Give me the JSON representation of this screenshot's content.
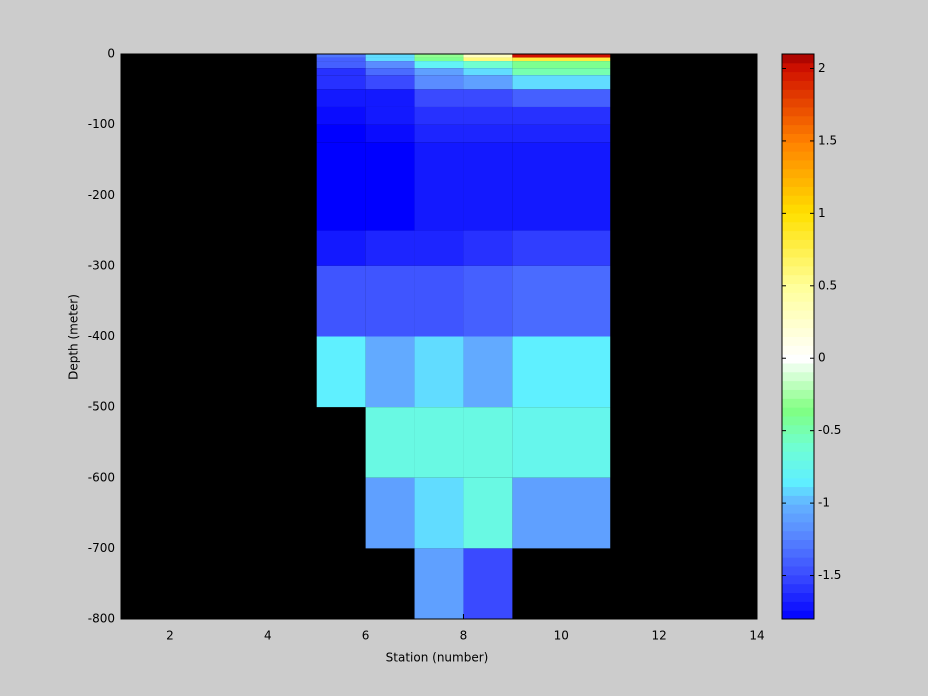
{
  "chart_data": {
    "type": "heatmap",
    "xlabel": "Station (number)",
    "ylabel": "Depth (meter)",
    "xlim": [
      1,
      14
    ],
    "xticks": [
      2,
      4,
      6,
      8,
      10,
      12,
      14
    ],
    "ylim": [
      -800,
      0
    ],
    "yticks": [
      -800,
      -700,
      -600,
      -500,
      -400,
      -300,
      -200,
      -100,
      0
    ],
    "x_edges": [
      5,
      6,
      7,
      8,
      9,
      11
    ],
    "y_edges": [
      0,
      -5,
      -10,
      -20,
      -30,
      -50,
      -75,
      -100,
      -125,
      -250,
      -300,
      -400,
      -500,
      -600,
      -700,
      -800
    ],
    "values": [
      [
        -1.3,
        -0.9,
        -0.3,
        0.3,
        2.0
      ],
      [
        -1.4,
        -0.9,
        -0.4,
        0.6,
        0.8
      ],
      [
        -1.4,
        -1.2,
        -0.8,
        -0.6,
        -0.4
      ],
      [
        -1.6,
        -1.35,
        -1.1,
        -0.9,
        -0.5
      ],
      [
        -1.6,
        -1.5,
        -1.2,
        -1.1,
        -0.9
      ],
      [
        -1.7,
        -1.7,
        -1.5,
        -1.5,
        -1.4
      ],
      [
        -1.75,
        -1.7,
        -1.6,
        -1.6,
        -1.6
      ],
      [
        -1.8,
        -1.75,
        -1.65,
        -1.65,
        -1.65
      ],
      [
        -1.8,
        -1.8,
        -1.7,
        -1.7,
        -1.7
      ],
      [
        -1.7,
        -1.65,
        -1.65,
        -1.6,
        -1.55
      ],
      [
        -1.45,
        -1.45,
        -1.45,
        -1.4,
        -1.35
      ],
      [
        -0.85,
        -1.05,
        -0.9,
        -1.05,
        -0.85
      ],
      [
        null,
        -0.7,
        -0.7,
        -0.7,
        -0.75
      ],
      [
        null,
        -1.1,
        -0.9,
        -0.7,
        -1.1
      ],
      [
        null,
        null,
        -1.1,
        -1.5,
        null
      ]
    ],
    "clim": [
      -1.8,
      2.1
    ],
    "cticks": [
      -1.5,
      -1,
      -0.5,
      0,
      0.5,
      1,
      1.5,
      2
    ],
    "colorscale": [
      [
        -1.8,
        "#0000ff"
      ],
      [
        -1.5,
        "#3a4aff"
      ],
      [
        -1.2,
        "#5a8cff"
      ],
      [
        -1.0,
        "#64b4ff"
      ],
      [
        -0.85,
        "#5ff0ff"
      ],
      [
        -0.6,
        "#70ffd0"
      ],
      [
        -0.35,
        "#80ff80"
      ],
      [
        0,
        "#ffffff"
      ],
      [
        0.5,
        "#ffff99"
      ],
      [
        1,
        "#ffe000"
      ],
      [
        1.5,
        "#ff8000"
      ],
      [
        2,
        "#d01000"
      ],
      [
        2.1,
        "#a00000"
      ]
    ],
    "background": "#000000"
  }
}
